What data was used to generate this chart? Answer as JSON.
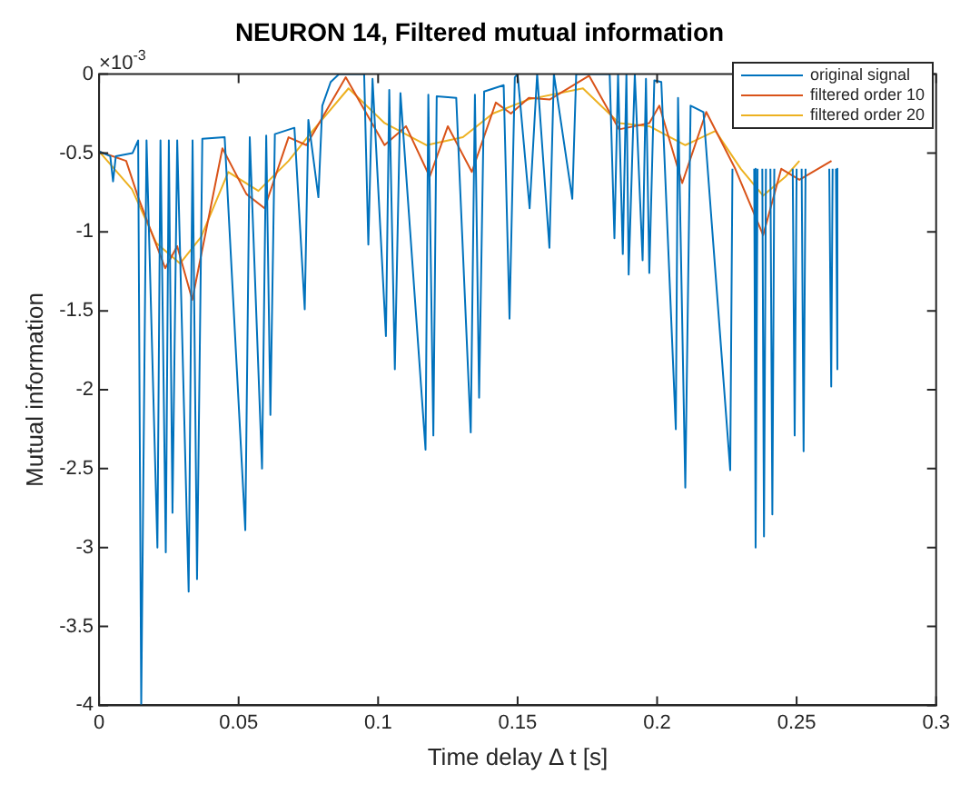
{
  "chart_data": {
    "type": "line",
    "title": "NEURON 14, Filtered mutual information",
    "xlabel": "Time delay Δ t [s]",
    "ylabel": "Mutual information",
    "annotations": [
      "×10$^{-3}$"
    ],
    "xlim": [
      0,
      0.3
    ],
    "xticks": [
      0,
      0.05,
      0.1,
      0.15,
      0.2,
      0.25,
      0.3
    ],
    "ylim": [
      -4,
      0
    ],
    "yticks": [
      -4,
      -3.5,
      -3,
      -2.5,
      -2,
      -1.5,
      -1,
      -0.5,
      0
    ],
    "grid": false,
    "legend": "top right",
    "marker": "none",
    "line_style": "solid",
    "series": [
      {
        "name": "original signal",
        "color": "#0072bd",
        "x": [
          0,
          0.004,
          0.005,
          0.006,
          0.012,
          0.014,
          0.0151,
          0.017,
          0.0209,
          0.022,
          0.0239,
          0.025,
          0.0263,
          0.028,
          0.0321,
          0.0335,
          0.0351,
          0.037,
          0.045,
          0.0524,
          0.054,
          0.0584,
          0.0599,
          0.0614,
          0.063,
          0.07,
          0.0737,
          0.075,
          0.0786,
          0.08,
          0.083,
          0.086,
          0.095,
          0.0965,
          0.098,
          0.1028,
          0.104,
          0.106,
          0.108,
          0.117,
          0.118,
          0.1198,
          0.121,
          0.128,
          0.1332,
          0.1347,
          0.1362,
          0.138,
          0.145,
          0.1471,
          0.149,
          0.15,
          0.1543,
          0.157,
          0.1614,
          0.163,
          0.1696,
          0.171,
          0.183,
          0.1847,
          0.186,
          0.1877,
          0.189,
          0.1898,
          0.192,
          0.1948,
          0.196,
          0.1972,
          0.199,
          0.2015,
          0.2067,
          0.2075,
          0.2101,
          0.212,
          0.2166,
          0.2262,
          0.227,
          0.231,
          0.2348,
          0.2353,
          0.236,
          0.237,
          0.2377,
          0.2383,
          0.239,
          0.24,
          0.2406,
          0.2413,
          0.242,
          0.245,
          0.2486,
          0.2493,
          0.25,
          0.251,
          0.2518,
          0.2525,
          0.2532,
          0.258,
          0.2617,
          0.2624,
          0.2629,
          0.2635,
          0.2641,
          0.2646
        ],
        "values": [
          -0.49,
          -0.52,
          -0.68,
          -0.52,
          -0.5,
          -0.42,
          -4,
          -0.42,
          -3,
          -0.42,
          -3.03,
          -0.42,
          -2.78,
          -0.42,
          -3.28,
          -0.42,
          -3.2,
          -0.41,
          -0.4,
          -2.89,
          -0.4,
          -2.5,
          -0.39,
          -2.16,
          -0.38,
          -0.34,
          -1.49,
          -0.29,
          -0.78,
          -0.2,
          -0.05,
          0,
          0,
          -1.08,
          -0.03,
          -1.66,
          -0.1,
          -1.87,
          -0.12,
          -2.38,
          -0.13,
          -2.29,
          -0.14,
          -0.15,
          -2.27,
          -0.13,
          -2.05,
          -0.11,
          -0.07,
          -1.55,
          -0.02,
          0,
          -0.85,
          0,
          -1.1,
          0,
          -0.79,
          0,
          0,
          -1.04,
          0,
          -1.14,
          0,
          -1.27,
          0,
          -1.18,
          -0.03,
          -1.26,
          -0.04,
          -0.05,
          -2.25,
          -0.15,
          -2.62,
          -0.2,
          -0.24,
          -2.51,
          -0.6,
          null,
          -0.6,
          -3,
          -0.6,
          null,
          -0.6,
          -2.93,
          -0.6,
          null,
          -0.6,
          -2.79,
          -0.6,
          null,
          -0.6,
          -2.29,
          -0.6,
          null,
          -0.6,
          -2.39,
          -0.6,
          null,
          -0.6,
          -1.98,
          -0.6,
          null,
          -0.6,
          -1.87
        ]
      },
      {
        "name": "filtered order 10",
        "color": "#d95319",
        "x": [
          0,
          0.0097,
          0.014,
          0.0183,
          0.0237,
          0.028,
          0.0334,
          0.0442,
          0.0528,
          0.0593,
          0.0679,
          0.0743,
          0.0884,
          0.1023,
          0.11,
          0.1185,
          0.125,
          0.1336,
          0.1422,
          0.1476,
          0.154,
          0.1616,
          0.1756,
          0.1864,
          0.1972,
          0.2008,
          0.209,
          0.2176,
          0.228,
          0.238,
          0.2445,
          0.251,
          0.2625
        ],
        "values": [
          -0.49,
          -0.55,
          -0.78,
          -0.98,
          -1.23,
          -1.09,
          -1.43,
          -0.47,
          -0.76,
          -0.85,
          -0.4,
          -0.45,
          -0.02,
          -0.45,
          -0.33,
          -0.65,
          -0.33,
          -0.62,
          -0.18,
          -0.25,
          -0.15,
          -0.16,
          -0.01,
          -0.35,
          -0.31,
          -0.2,
          -0.69,
          -0.24,
          -0.6,
          -1.02,
          -0.6,
          -0.67,
          -0.55
        ]
      },
      {
        "name": "filtered order 20",
        "color": "#edb120",
        "x": [
          0,
          0.0118,
          0.0205,
          0.029,
          0.0366,
          0.0463,
          0.0571,
          0.0679,
          0.0765,
          0.0894,
          0.1023,
          0.1174,
          0.1304,
          0.1411,
          0.154,
          0.1734,
          0.1864,
          0.1972,
          0.2101,
          0.2209,
          0.23,
          0.238,
          0.246,
          0.251
        ],
        "values": [
          -0.49,
          -0.73,
          -1.07,
          -1.2,
          -1.03,
          -0.62,
          -0.74,
          -0.55,
          -0.36,
          -0.09,
          -0.31,
          -0.45,
          -0.4,
          -0.25,
          -0.16,
          -0.09,
          -0.31,
          -0.33,
          -0.45,
          -0.36,
          -0.6,
          -0.77,
          -0.65,
          -0.55
        ]
      }
    ]
  }
}
